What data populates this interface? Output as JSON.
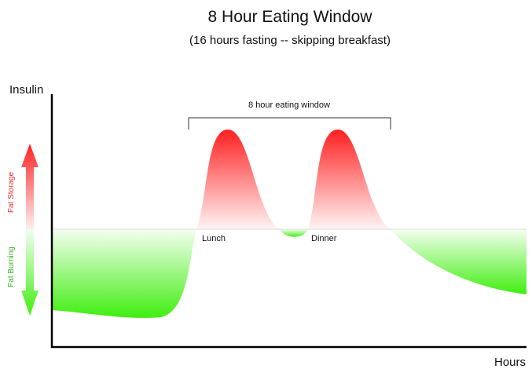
{
  "header": {
    "title": "8 Hour Eating Window",
    "subtitle": "(16 hours fasting -- skipping breakfast)"
  },
  "axes": {
    "y_label": "Insulin",
    "x_label": "Hours"
  },
  "bracket": {
    "label": "8 hour eating window"
  },
  "meals": [
    "Lunch",
    "Dinner"
  ],
  "indicators": {
    "up": "Fat Storage",
    "down": "Fat Burning"
  }
}
